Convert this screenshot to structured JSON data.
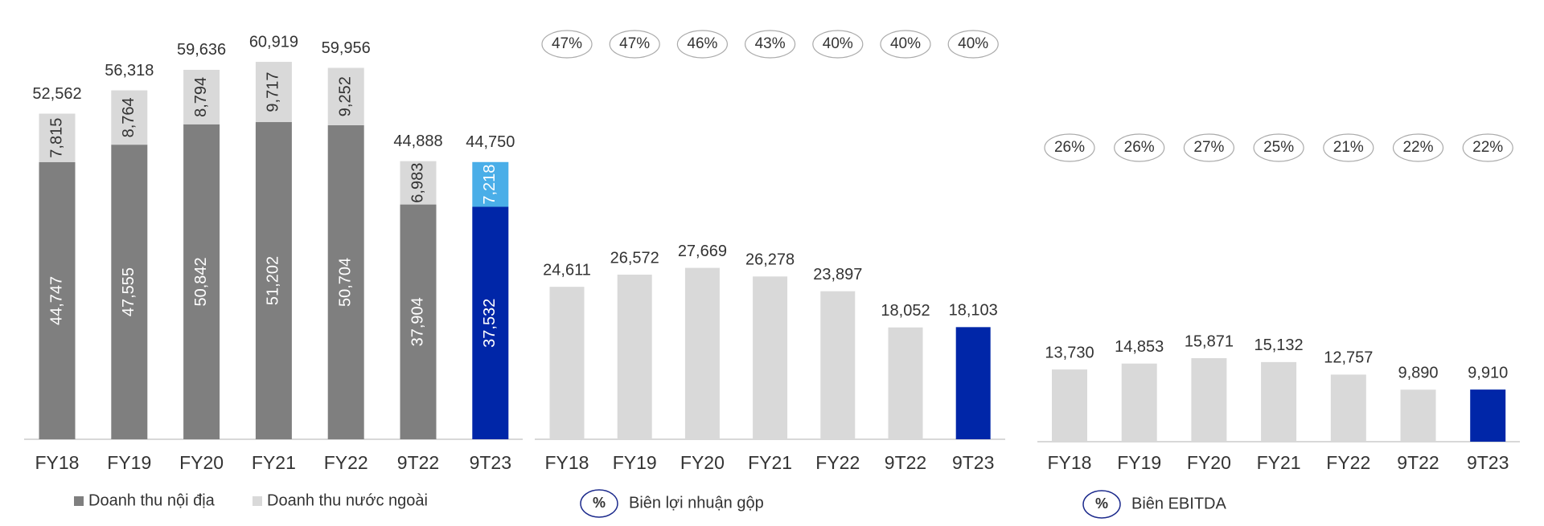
{
  "chart_data": [
    {
      "type": "stacked-bar",
      "categories": [
        "FY18",
        "FY19",
        "FY20",
        "FY21",
        "FY22",
        "9T22",
        "9T23"
      ],
      "series": [
        {
          "name": "Doanh thu nội địa",
          "color": "#7f7f7f",
          "colors": [
            "#7f7f7f",
            "#7f7f7f",
            "#7f7f7f",
            "#7f7f7f",
            "#7f7f7f",
            "#7f7f7f",
            "#0026a8"
          ],
          "values": [
            44747,
            47555,
            50842,
            51202,
            50704,
            37904,
            37532
          ],
          "value_labels": [
            "44,747",
            "47,555",
            "50,842",
            "51,202",
            "50,704",
            "37,904",
            "37,532"
          ]
        },
        {
          "name": "Doanh thu nước ngoài",
          "color": "#d9d9d9",
          "colors": [
            "#d9d9d9",
            "#d9d9d9",
            "#d9d9d9",
            "#d9d9d9",
            "#d9d9d9",
            "#d9d9d9",
            "#4aaee8"
          ],
          "values": [
            7815,
            8764,
            8794,
            9717,
            9252,
            6983,
            7218
          ],
          "value_labels": [
            "7,815",
            "8,764",
            "8,794",
            "9,717",
            "9,252",
            "6,983",
            "7,218"
          ]
        }
      ],
      "totals": [
        52562,
        56318,
        59636,
        60919,
        59956,
        44888,
        44750
      ],
      "total_labels": [
        "52,562",
        "56,318",
        "59,636",
        "60,919",
        "59,956",
        "44,888",
        "44,750"
      ],
      "ylim": [
        0,
        70000
      ]
    },
    {
      "type": "bar",
      "categories": [
        "FY18",
        "FY19",
        "FY20",
        "FY21",
        "FY22",
        "9T22",
        "9T23"
      ],
      "values": [
        24611,
        26572,
        27669,
        26278,
        23897,
        18052,
        18103
      ],
      "value_labels": [
        "24,611",
        "26,572",
        "27,669",
        "26,278",
        "23,897",
        "18,052",
        "18,103"
      ],
      "colors": [
        "#d9d9d9",
        "#d9d9d9",
        "#d9d9d9",
        "#d9d9d9",
        "#d9d9d9",
        "#d9d9d9",
        "#0026a8"
      ],
      "margins": [
        47,
        47,
        46,
        43,
        40,
        40,
        40
      ],
      "margin_labels": [
        "47%",
        "47%",
        "46%",
        "43%",
        "40%",
        "40%",
        "40%"
      ],
      "legend_symbol": "%",
      "legend": "Biên lợi nhuận gộp",
      "ylim": [
        0,
        70000
      ]
    },
    {
      "type": "bar",
      "categories": [
        "FY18",
        "FY19",
        "FY20",
        "FY21",
        "FY22",
        "9T22",
        "9T23"
      ],
      "values": [
        13730,
        14853,
        15871,
        15132,
        12757,
        9890,
        9910
      ],
      "value_labels": [
        "13,730",
        "14,853",
        "15,871",
        "15,132",
        "12,757",
        "9,890",
        "9,910"
      ],
      "colors": [
        "#d9d9d9",
        "#d9d9d9",
        "#d9d9d9",
        "#d9d9d9",
        "#d9d9d9",
        "#d9d9d9",
        "#0026a8"
      ],
      "margins": [
        26,
        26,
        27,
        25,
        21,
        22,
        22
      ],
      "margin_labels": [
        "26%",
        "26%",
        "27%",
        "25%",
        "21%",
        "22%",
        "22%"
      ],
      "legend_symbol": "%",
      "legend": "Biên EBITDA",
      "ylim": [
        0,
        20000
      ]
    }
  ]
}
